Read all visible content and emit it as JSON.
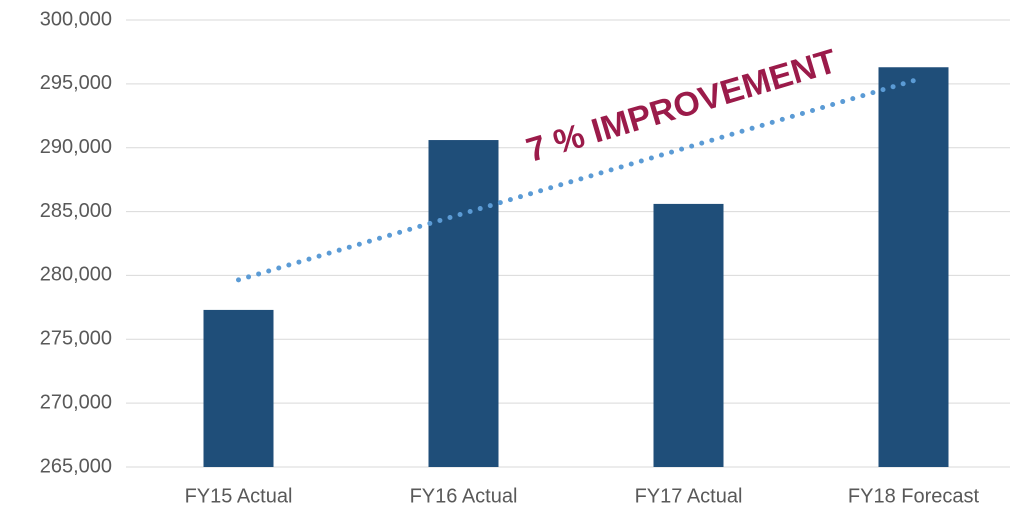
{
  "chart_data": {
    "type": "bar",
    "categories": [
      "FY15 Actual",
      "FY16 Actual",
      "FY17 Actual",
      "FY18 Forecast"
    ],
    "values": [
      277300,
      290600,
      285600,
      296300
    ],
    "color": "#1f4e79",
    "trendline": {
      "color": "#5b9bd5",
      "values": [
        279650,
        284850,
        290050,
        295250
      ]
    },
    "annotation": {
      "text": "7 % IMPROVEMENT",
      "color": "#9b1b4a"
    },
    "ylim": [
      265000,
      300000
    ],
    "yticks": [
      {
        "value": 265000,
        "label": "265,000"
      },
      {
        "value": 270000,
        "label": "270,000"
      },
      {
        "value": 275000,
        "label": "275,000"
      },
      {
        "value": 280000,
        "label": "280,000"
      },
      {
        "value": 285000,
        "label": "285,000"
      },
      {
        "value": 290000,
        "label": "290,000"
      },
      {
        "value": 295000,
        "label": "295,000"
      },
      {
        "value": 300000,
        "label": "300,000"
      }
    ],
    "grid": true
  }
}
